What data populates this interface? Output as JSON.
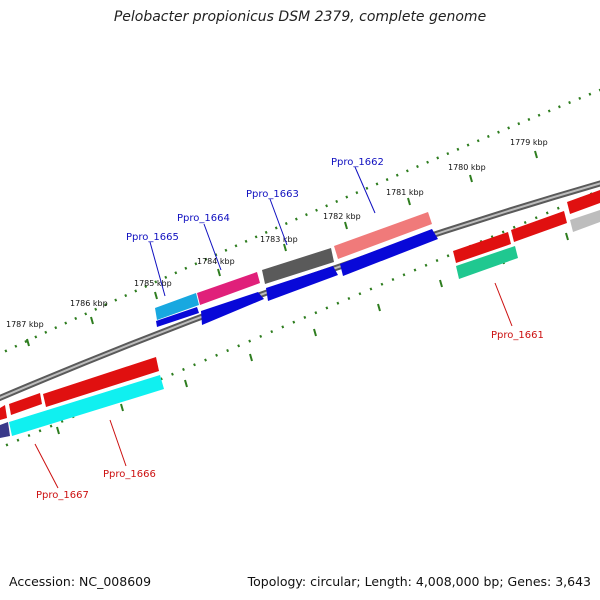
{
  "title": "Pelobacter propionicus DSM 2379, complete genome",
  "footer": {
    "accession": "Accession: NC_008609",
    "summary": "Topology: circular; Length: 4,008,000 bp; Genes: 3,643"
  },
  "colors": {
    "backbone": "#8c8c8c",
    "tick": "#2e7d1f",
    "label_forward": "#1010c0",
    "label_reverse": "#cc1010"
  },
  "scale_labels": [
    "1779 kbp",
    "1780 kbp",
    "1781 kbp",
    "1782 kbp",
    "1783 kbp",
    "1784 kbp",
    "1785 kbp",
    "1786 kbp",
    "1787 kbp"
  ],
  "genes": [
    {
      "label": "Ppro_1661",
      "color": "#cc1010"
    },
    {
      "label": "Ppro_1662",
      "color": "#1010c0"
    },
    {
      "label": "Ppro_1663",
      "color": "#1010c0"
    },
    {
      "label": "Ppro_1664",
      "color": "#1010c0"
    },
    {
      "label": "Ppro_1665",
      "color": "#1010c0"
    },
    {
      "label": "Ppro_1666",
      "color": "#cc1010"
    },
    {
      "label": "Ppro_1667",
      "color": "#cc1010"
    }
  ]
}
